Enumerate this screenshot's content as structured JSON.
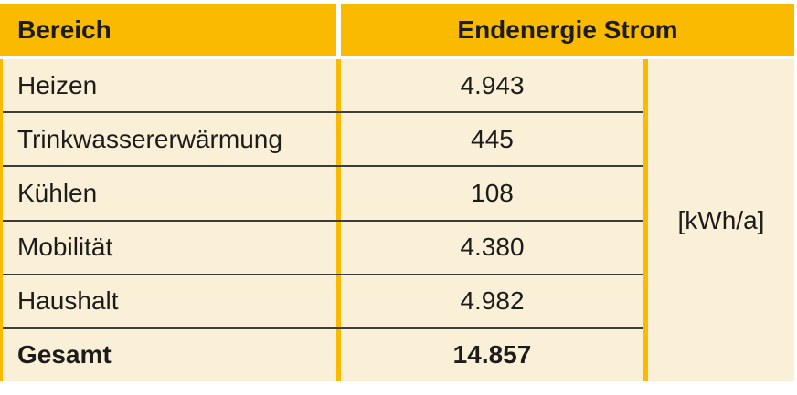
{
  "table": {
    "columns": {
      "area": "Bereich",
      "energy": "Endenergie Strom"
    },
    "rows": [
      {
        "label": "Heizen",
        "value": "4.943"
      },
      {
        "label": "Trinkwassererwärmung",
        "value": "445"
      },
      {
        "label": "Kühlen",
        "value": "108"
      },
      {
        "label": "Mobilität",
        "value": "4.380"
      },
      {
        "label": "Haushalt",
        "value": "4.982"
      }
    ],
    "total": {
      "label": "Gesamt",
      "value": "14.857"
    },
    "unit": "[kWh/a]"
  },
  "colors": {
    "gold": "#F9BA00",
    "cream": "#FAF0D8",
    "separator": "#3C3C3B",
    "text": "#1C1C1A"
  },
  "chart_data": {
    "type": "table",
    "columns": [
      "Bereich",
      "Endenergie Strom"
    ],
    "unit": "[kWh/a]",
    "rows": [
      [
        "Heizen",
        4943
      ],
      [
        "Trinkwassererwärmung",
        445
      ],
      [
        "Kühlen",
        108
      ],
      [
        "Mobilität",
        4380
      ],
      [
        "Haushalt",
        4982
      ],
      [
        "Gesamt",
        14857
      ]
    ]
  }
}
